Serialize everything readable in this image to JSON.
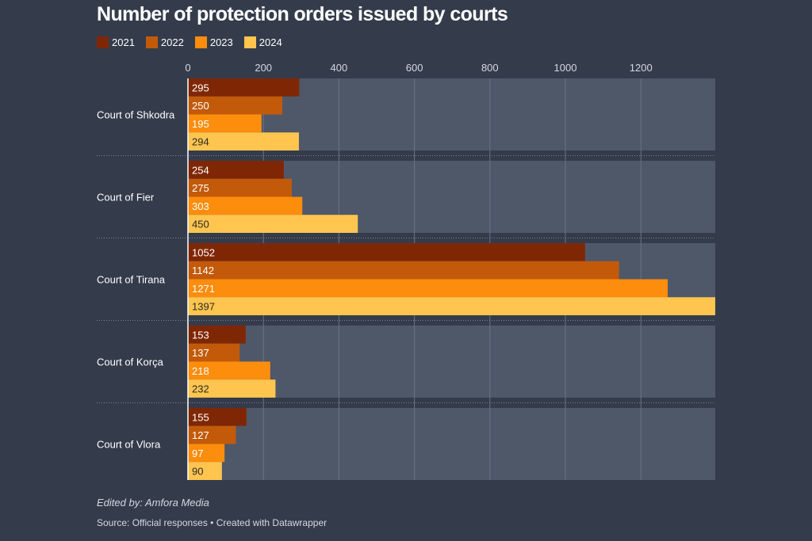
{
  "chart_data": {
    "type": "bar",
    "orientation": "horizontal",
    "title": "Number of protection orders issued by courts",
    "categories": [
      "Court of Shkodra",
      "Court of Fier",
      "Court of Tirana",
      "Court of Korça",
      "Court of Vlora"
    ],
    "series": [
      {
        "name": "2021",
        "color": "#7f2704",
        "values": [
          295,
          254,
          1052,
          153,
          155
        ]
      },
      {
        "name": "2022",
        "color": "#c25a0a",
        "values": [
          250,
          275,
          1142,
          137,
          127
        ]
      },
      {
        "name": "2023",
        "color": "#fd8d0c",
        "values": [
          195,
          303,
          1271,
          218,
          97
        ]
      },
      {
        "name": "2024",
        "color": "#ffc54f",
        "values": [
          294,
          450,
          1397,
          232,
          90
        ]
      }
    ],
    "x_ticks": [
      0,
      200,
      400,
      600,
      800,
      1000,
      1200
    ],
    "xlim": [
      0,
      1397
    ],
    "grid": true,
    "legend_position": "top-left",
    "xlabel": "",
    "ylabel": ""
  },
  "footer": {
    "credit": "Edited by: Amfora Media",
    "source": "Source: Official responses • Created with Datawrapper"
  },
  "colors": {
    "background": "#343c4c",
    "panel": "#4f5869",
    "grid": "#6a7384",
    "label_light": "#ffffff",
    "label_dark": "#2a2a2a"
  }
}
